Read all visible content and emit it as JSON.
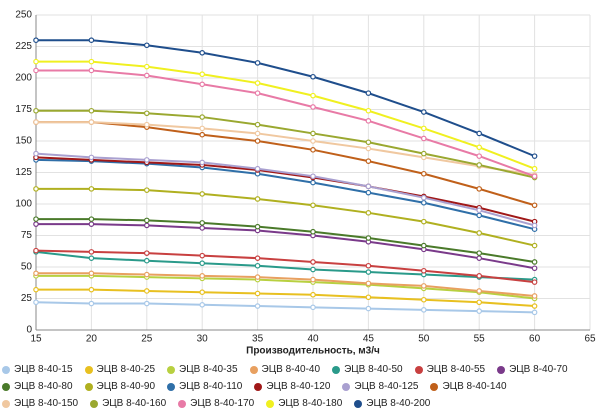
{
  "chart_data": {
    "type": "line",
    "x_label": "Производительность, м3/ч",
    "x": [
      15,
      20,
      25,
      30,
      35,
      40,
      45,
      50,
      55,
      60
    ],
    "xlim": [
      15,
      65
    ],
    "xticks": [
      15,
      20,
      25,
      30,
      35,
      40,
      45,
      50,
      55,
      60,
      65
    ],
    "ylim": [
      0,
      250
    ],
    "yticks": [
      0,
      25,
      50,
      75,
      100,
      125,
      150,
      175,
      200,
      225,
      250
    ],
    "grid": true,
    "legend": "bottom",
    "series": [
      {
        "name": "ЭЦВ 8-40-15",
        "color": "#a8c8e8",
        "values": [
          22,
          21,
          21,
          20,
          19,
          18,
          17,
          16,
          15,
          14
        ]
      },
      {
        "name": "ЭЦВ 8-40-25",
        "color": "#e8c020",
        "values": [
          32,
          32,
          31,
          30,
          29,
          28,
          26,
          24,
          22,
          19
        ]
      },
      {
        "name": "ЭЦВ 8-40-35",
        "color": "#b8d040",
        "values": [
          43,
          43,
          42,
          41,
          40,
          38,
          36,
          33,
          30,
          25
        ]
      },
      {
        "name": "ЭЦВ 8-40-40",
        "color": "#e8a060",
        "values": [
          45,
          45,
          44,
          43,
          42,
          40,
          37,
          35,
          31,
          27
        ]
      },
      {
        "name": "ЭЦВ 8-40-50",
        "color": "#2a9a8a",
        "values": [
          62,
          57,
          55,
          53,
          51,
          48,
          46,
          44,
          42,
          40
        ]
      },
      {
        "name": "ЭЦВ 8-40-55",
        "color": "#c84040",
        "values": [
          63,
          62,
          61,
          59,
          57,
          54,
          51,
          47,
          43,
          38
        ]
      },
      {
        "name": "ЭЦВ 8-40-70",
        "color": "#7a3a8a",
        "values": [
          84,
          84,
          83,
          81,
          79,
          75,
          70,
          64,
          57,
          49
        ]
      },
      {
        "name": "ЭЦВ 8-40-80",
        "color": "#4a7a2a",
        "values": [
          88,
          88,
          87,
          85,
          82,
          78,
          73,
          67,
          61,
          54
        ]
      },
      {
        "name": "ЭЦВ 8-40-90",
        "color": "#b0b020",
        "values": [
          112,
          112,
          111,
          108,
          104,
          99,
          93,
          86,
          77,
          67
        ]
      },
      {
        "name": "ЭЦВ 8-40-110",
        "color": "#2f6fa8",
        "values": [
          135,
          134,
          132,
          129,
          124,
          117,
          109,
          101,
          91,
          80
        ]
      },
      {
        "name": "ЭЦВ 8-40-120",
        "color": "#a01818",
        "values": [
          137,
          135,
          133,
          131,
          127,
          121,
          114,
          106,
          97,
          86
        ]
      },
      {
        "name": "ЭЦВ 8-40-125",
        "color": "#a9a0d0",
        "values": [
          140,
          137,
          135,
          133,
          128,
          122,
          114,
          105,
          95,
          83
        ]
      },
      {
        "name": "ЭЦВ 8-40-140",
        "color": "#c0601a",
        "values": [
          165,
          165,
          161,
          155,
          150,
          143,
          134,
          124,
          112,
          99
        ]
      },
      {
        "name": "ЭЦВ 8-40-150",
        "color": "#f0c8a0",
        "values": [
          165,
          165,
          163,
          160,
          156,
          150,
          144,
          137,
          130,
          123
        ]
      },
      {
        "name": "ЭЦВ 8-40-160",
        "color": "#9aa830",
        "values": [
          174,
          174,
          172,
          169,
          163,
          156,
          149,
          140,
          131,
          121
        ]
      },
      {
        "name": "ЭЦВ 8-40-170",
        "color": "#e87aa6",
        "values": [
          206,
          206,
          202,
          195,
          188,
          177,
          166,
          152,
          138,
          122
        ]
      },
      {
        "name": "ЭЦВ 8-40-180",
        "color": "#f0f020",
        "values": [
          213,
          213,
          209,
          203,
          196,
          186,
          174,
          160,
          145,
          128
        ]
      },
      {
        "name": "ЭЦВ 8-40-200",
        "color": "#1f4e8c",
        "values": [
          230,
          230,
          226,
          220,
          212,
          201,
          188,
          173,
          156,
          138
        ]
      }
    ]
  }
}
